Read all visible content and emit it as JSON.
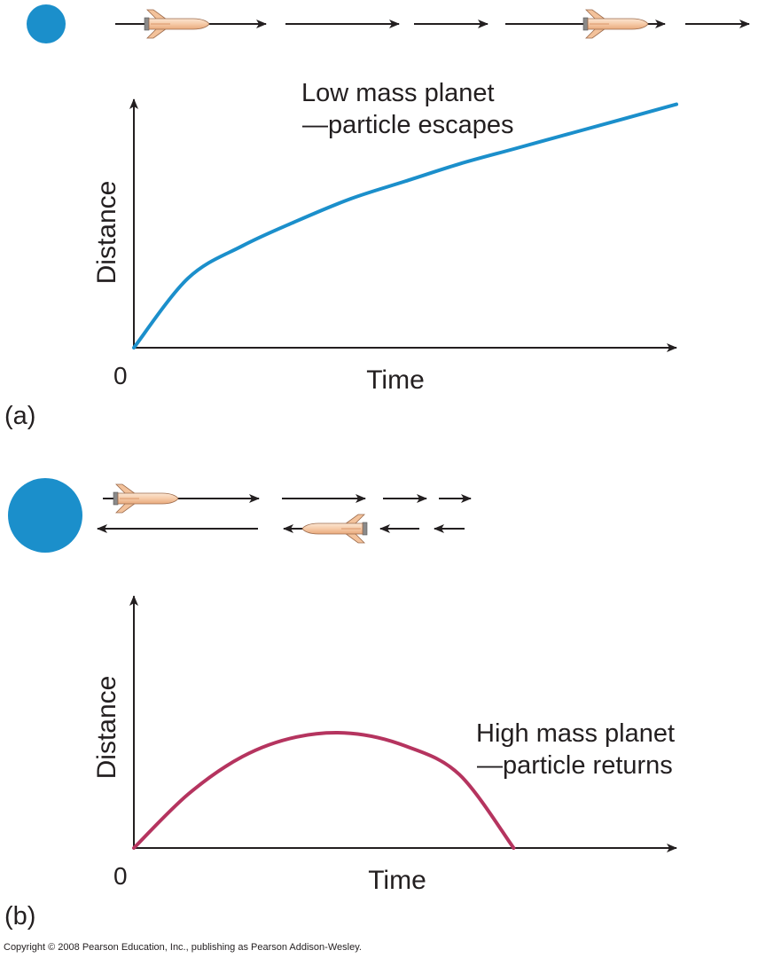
{
  "panel_a": {
    "tag": "(a)",
    "title_line1": "Low mass planet",
    "title_line2": "—particle escapes",
    "ylabel": "Distance",
    "xlabel": "Time",
    "origin_label": "0",
    "curve_color": "#1b8fcb",
    "planet_color": "#1b8fcb"
  },
  "panel_b": {
    "tag": "(b)",
    "title_line1": "High mass planet",
    "title_line2": "—particle returns",
    "ylabel": "Distance",
    "xlabel": "Time",
    "origin_label": "0",
    "curve_color": "#b5345f",
    "planet_color": "#1b8fcb"
  },
  "copyright": "Copyright © 2008 Pearson Education, Inc., publishing as Pearson Addison-Wesley.",
  "icons": [
    "planet-icon",
    "spaceship-icon",
    "arrow-icon"
  ],
  "chart_data": [
    {
      "type": "line",
      "title": "Low mass planet —particle escapes",
      "xlabel": "Time",
      "ylabel": "Distance",
      "x_tick_labels": [
        "0"
      ],
      "grid": false,
      "series": [
        {
          "x": [
            0,
            0.1,
            0.2,
            0.3,
            0.4,
            0.5,
            0.6,
            0.7,
            0.8,
            0.9,
            1.0
          ],
          "y": [
            0,
            0.28,
            0.41,
            0.51,
            0.6,
            0.67,
            0.74,
            0.8,
            0.86,
            0.92,
            0.98
          ]
        }
      ]
    },
    {
      "type": "line",
      "title": "High mass planet —particle returns",
      "xlabel": "Time",
      "ylabel": "Distance",
      "x_tick_labels": [
        "0"
      ],
      "grid": false,
      "series": [
        {
          "x": [
            0,
            0.1,
            0.2,
            0.3,
            0.4,
            0.5,
            0.6,
            0.7
          ],
          "y": [
            0,
            0.3,
            0.51,
            0.62,
            0.64,
            0.57,
            0.41,
            0
          ]
        }
      ]
    }
  ]
}
